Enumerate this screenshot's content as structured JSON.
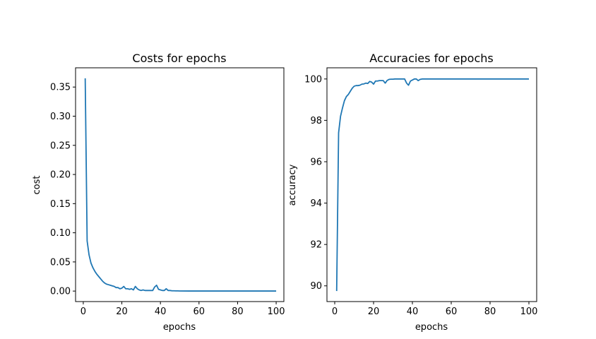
{
  "colors": {
    "series": "#1f77b4",
    "axes": "#000000",
    "background": "#ffffff"
  },
  "chart_data": [
    {
      "type": "line",
      "title": "Costs for epochs",
      "xlabel": "epochs",
      "ylabel": "cost",
      "xlim": [
        -4,
        104
      ],
      "ylim": [
        -0.018,
        0.383
      ],
      "xticks": [
        0,
        20,
        40,
        60,
        80,
        100
      ],
      "xtick_labels": [
        "0",
        "20",
        "40",
        "60",
        "80",
        "100"
      ],
      "yticks": [
        0.0,
        0.05,
        0.1,
        0.15,
        0.2,
        0.25,
        0.3,
        0.35
      ],
      "ytick_labels": [
        "0.00",
        "0.05",
        "0.10",
        "0.15",
        "0.20",
        "0.25",
        "0.30",
        "0.35"
      ],
      "grid": false,
      "series": [
        {
          "x": [
            1,
            2,
            3,
            4,
            5,
            6,
            7,
            8,
            9,
            10,
            11,
            12,
            13,
            14,
            15,
            16,
            17,
            18,
            19,
            20,
            21,
            22,
            23,
            24,
            25,
            26,
            27,
            28,
            29,
            30,
            31,
            32,
            33,
            34,
            35,
            36,
            37,
            38,
            39,
            40,
            41,
            42,
            43,
            44,
            45,
            46,
            47,
            48,
            49,
            50,
            55,
            60,
            65,
            70,
            75,
            80,
            85,
            90,
            95,
            100
          ],
          "values": [
            0.365,
            0.086,
            0.062,
            0.048,
            0.04,
            0.034,
            0.029,
            0.025,
            0.021,
            0.017,
            0.014,
            0.012,
            0.011,
            0.01,
            0.009,
            0.008,
            0.006,
            0.006,
            0.004,
            0.005,
            0.008,
            0.004,
            0.004,
            0.003,
            0.004,
            0.002,
            0.008,
            0.004,
            0.002,
            0.001,
            0.002,
            0.001,
            0.001,
            0.001,
            0.001,
            0.001,
            0.007,
            0.01,
            0.003,
            0.002,
            0.001,
            0.001,
            0.004,
            0.001,
            0.001,
            0.0005,
            0.0005,
            0.0003,
            0.0003,
            0.0002,
            0.0001,
            0.0001,
            0.0001,
            0.0001,
            0.0001,
            0.0001,
            0.0001,
            0.0001,
            0.0001,
            0.0001
          ]
        }
      ]
    },
    {
      "type": "line",
      "title": "Accuracies for epochs",
      "xlabel": "epochs",
      "ylabel": "accuracy",
      "xlim": [
        -4,
        104
      ],
      "ylim": [
        89.24,
        100.54
      ],
      "xticks": [
        0,
        20,
        40,
        60,
        80,
        100
      ],
      "xtick_labels": [
        "0",
        "20",
        "40",
        "60",
        "80",
        "100"
      ],
      "yticks": [
        90,
        92,
        94,
        96,
        98,
        100
      ],
      "ytick_labels": [
        "90",
        "92",
        "94",
        "96",
        "98",
        "100"
      ],
      "grid": false,
      "series": [
        {
          "x": [
            1,
            2,
            3,
            4,
            5,
            6,
            7,
            8,
            9,
            10,
            11,
            12,
            13,
            14,
            15,
            16,
            17,
            18,
            19,
            20,
            21,
            22,
            23,
            24,
            25,
            26,
            27,
            28,
            29,
            30,
            31,
            32,
            33,
            34,
            35,
            36,
            37,
            38,
            39,
            40,
            41,
            42,
            43,
            44,
            45,
            46,
            47,
            48,
            49,
            50,
            55,
            60,
            65,
            70,
            75,
            80,
            85,
            90,
            95,
            100
          ],
          "values": [
            89.75,
            97.4,
            98.2,
            98.6,
            98.95,
            99.15,
            99.25,
            99.4,
            99.55,
            99.65,
            99.68,
            99.68,
            99.7,
            99.75,
            99.76,
            99.8,
            99.78,
            99.88,
            99.85,
            99.75,
            99.9,
            99.9,
            99.92,
            99.92,
            99.92,
            99.8,
            99.93,
            99.98,
            99.99,
            99.99,
            100.0,
            100.0,
            100.0,
            100.0,
            100.0,
            100.0,
            99.8,
            99.7,
            99.9,
            99.95,
            100.0,
            100.0,
            99.92,
            99.98,
            100.0,
            100.0,
            100.0,
            100.0,
            100.0,
            100.0,
            100.0,
            100.0,
            100.0,
            100.0,
            100.0,
            100.0,
            100.0,
            100.0,
            100.0,
            100.0
          ]
        }
      ]
    }
  ]
}
